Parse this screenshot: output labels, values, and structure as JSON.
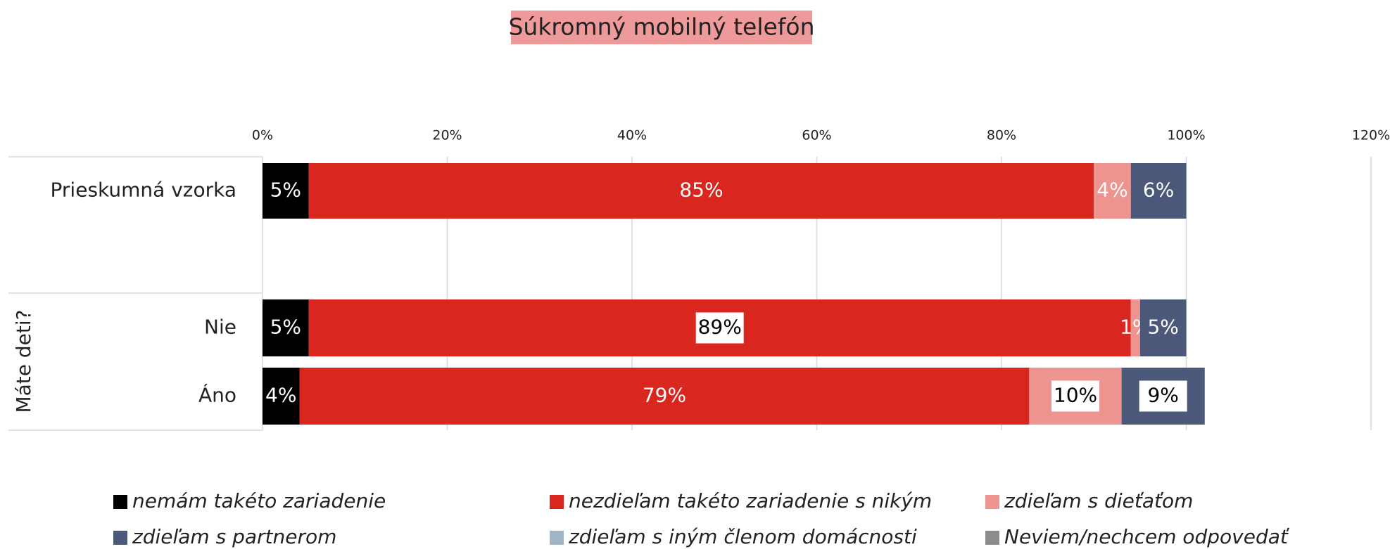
{
  "chart_data": {
    "type": "stacked_barh",
    "title": "Súkromný mobilný telefón",
    "categories": [
      "Prieskumná vzorka",
      "Nie",
      "Áno"
    ],
    "group_label": "Máte deti?",
    "series": [
      {
        "name": "nemám takéto zariadenie",
        "color": "#000000",
        "values": [
          5,
          5,
          4
        ],
        "value_labels": [
          "5%",
          "5%",
          "4%"
        ]
      },
      {
        "name": "nezdieľam takéto zariadenie s nikým",
        "color": "#d9261e",
        "values": [
          85,
          89,
          79
        ],
        "value_labels": [
          "85%",
          "89%",
          "79%"
        ]
      },
      {
        "name": "zdieľam s dieťaťom",
        "color": "#ee9490",
        "values": [
          4,
          1,
          10
        ],
        "value_labels": [
          "4%",
          "1%",
          "10%"
        ]
      },
      {
        "name": "zdieľam s partnerom",
        "color": "#4b587a",
        "values": [
          6,
          5,
          9
        ],
        "value_labels": [
          "6%",
          "5%",
          "9%"
        ]
      },
      {
        "name": "zdieľam s iným členom domácnosti",
        "color": "#9fb4c7",
        "values": [
          0,
          0,
          0
        ]
      },
      {
        "name": "Neviem/nechcem odpovedať",
        "color": "#8c8c8c",
        "values": [
          0,
          0,
          0
        ]
      }
    ],
    "xlim": [
      0,
      120
    ],
    "xticks": [
      {
        "value": 0,
        "label": "0%"
      },
      {
        "value": 20,
        "label": "20%"
      },
      {
        "value": 40,
        "label": "40%"
      },
      {
        "value": 60,
        "label": "60%"
      },
      {
        "value": 80,
        "label": "80%"
      },
      {
        "value": 100,
        "label": "100%"
      },
      {
        "value": 120,
        "label": "120%"
      }
    ],
    "grid": true
  }
}
